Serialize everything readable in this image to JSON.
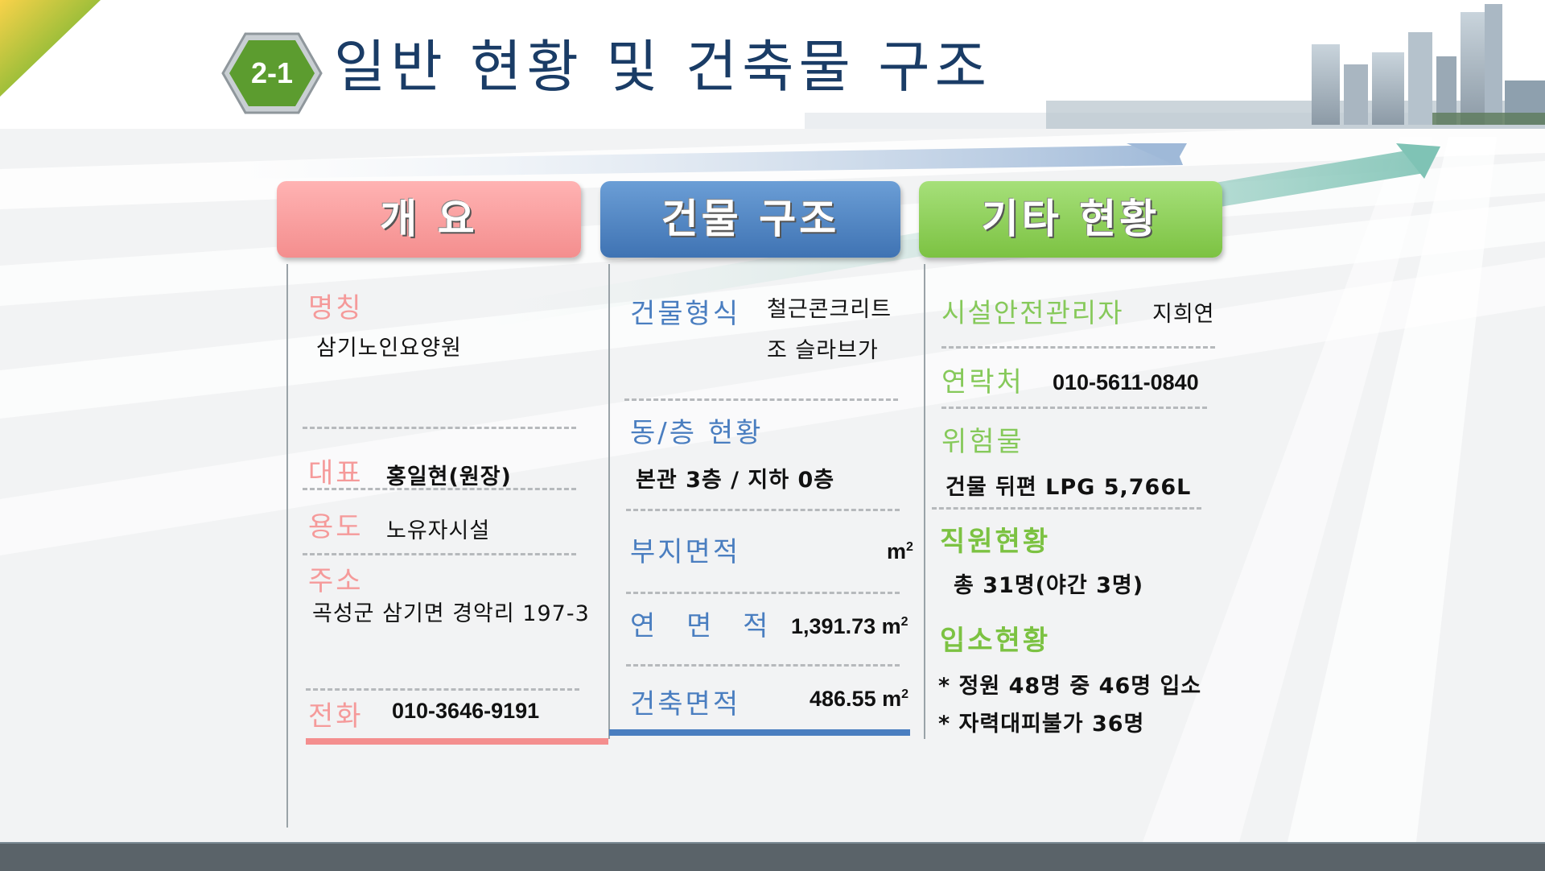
{
  "header": {
    "section_number": "2-1",
    "title": "일반 현황 및 건축물 구조"
  },
  "colors": {
    "pink": "#f59a9a",
    "blue": "#4a7ec0",
    "green": "#7cc242",
    "title": "#1a3c66",
    "footer": "#5a6369"
  },
  "columns": {
    "overview": {
      "tab": "개 요",
      "name_label": "명칭",
      "name_value": "삼기노인요양원",
      "rep_label": "대표",
      "rep_value": "홍일현(원장)",
      "use_label": "용도",
      "use_value": "노유자시설",
      "address_label": "주소",
      "address_value": "곡성군 삼기면 경악리 197-3",
      "phone_label": "전화",
      "phone_value": "010-3646-9191"
    },
    "structure": {
      "tab": "건물 구조",
      "type_label": "건물형식",
      "type_value_1": "철근콘크리트",
      "type_value_2": "조 슬라브가",
      "floors_label": "동/층 현황",
      "floors_value": "본관 3층 / 지하 0층",
      "site_area_label": "부지면적",
      "site_area_value": "",
      "site_area_unit": "m",
      "total_area_label": "연 면 적",
      "total_area_value": "1,391.73 m",
      "building_area_label": "건축면적",
      "building_area_value": "486.55 m",
      "unit_sup": "2"
    },
    "other": {
      "tab": "기타 현황",
      "manager_label": "시설안전관리자",
      "manager_value": "지희연",
      "contact_label": "연락처",
      "contact_value": "010-5611-0840",
      "hazard_label": "위험물",
      "hazard_value": "건물 뒤편 LPG 5,766L",
      "staff_label": "직원현황",
      "staff_value": "총 31명(야간 3명)",
      "resident_label": "입소현황",
      "resident_value_1": "* 정원 48명 중 46명 입소",
      "resident_value_2": "* 자력대피불가 36명"
    }
  }
}
